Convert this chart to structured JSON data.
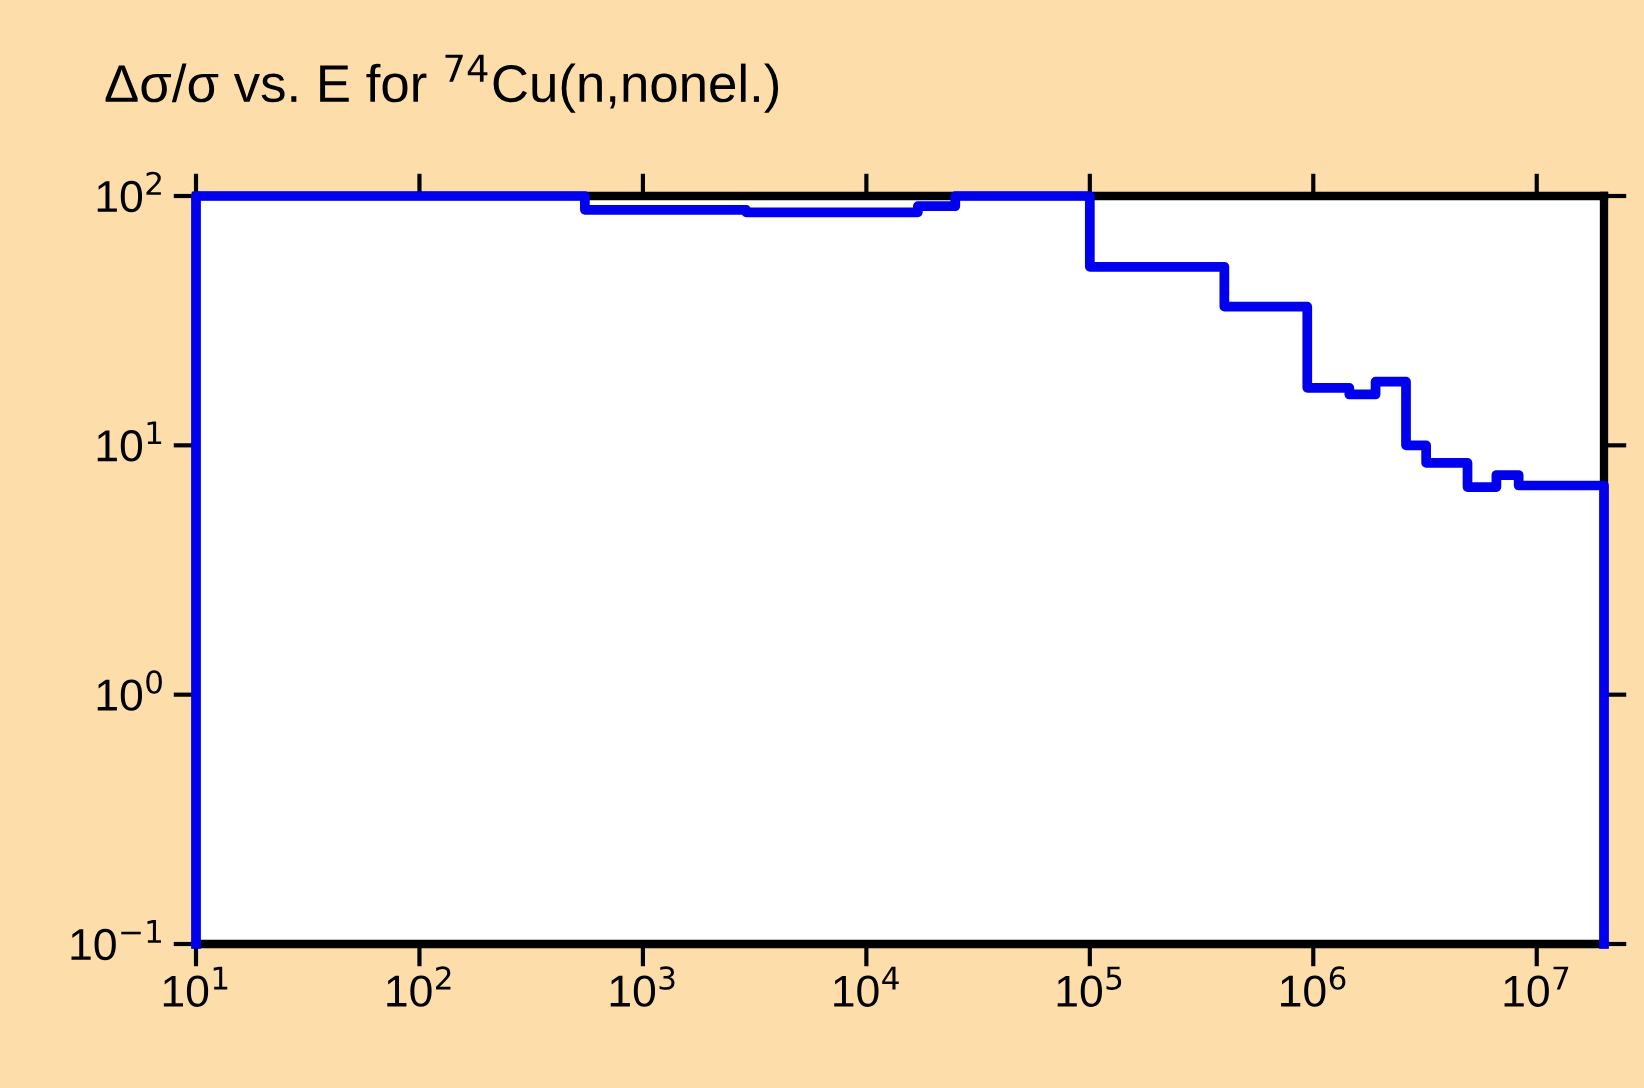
{
  "chart_data": {
    "type": "step",
    "title": "Δσ/σ vs. E for $^{74}$Cu(n,nonel.)",
    "log": "xy",
    "grid": false,
    "legend": false,
    "xlim": [
      10,
      20000000
    ],
    "ylim": [
      0.1,
      100
    ],
    "xticks": [
      {
        "value": 10,
        "label": "10$^{1}$"
      },
      {
        "value": 100,
        "label": "10$^{2}$"
      },
      {
        "value": 1000,
        "label": "10$^{3}$"
      },
      {
        "value": 10000,
        "label": "10$^{4}$"
      },
      {
        "value": 100000,
        "label": "10$^{5}$"
      },
      {
        "value": 1000000,
        "label": "10$^{6}$"
      },
      {
        "value": 10000000,
        "label": "10$^{7}$"
      }
    ],
    "yticks": [
      {
        "value": 0.1,
        "label": "10$^{−1}$"
      },
      {
        "value": 1,
        "label": "10$^{0}$"
      },
      {
        "value": 10,
        "label": "10$^{1}$"
      },
      {
        "value": 100,
        "label": "10$^{2}$"
      }
    ],
    "series": [
      {
        "color": "#0000ee",
        "x": [
          10,
          10,
          550,
          2900,
          17000,
          25000,
          100000,
          400000,
          940000,
          1450000,
          1900000,
          2600000,
          3200000,
          4900000,
          6600000,
          8300000,
          20000000,
          20000000
        ],
        "values": [
          0.1,
          100,
          88,
          86,
          91,
          100,
          52,
          36,
          17,
          16,
          18,
          10,
          8.5,
          6.8,
          7.6,
          6.9,
          6.9,
          0.1
        ]
      }
    ]
  }
}
